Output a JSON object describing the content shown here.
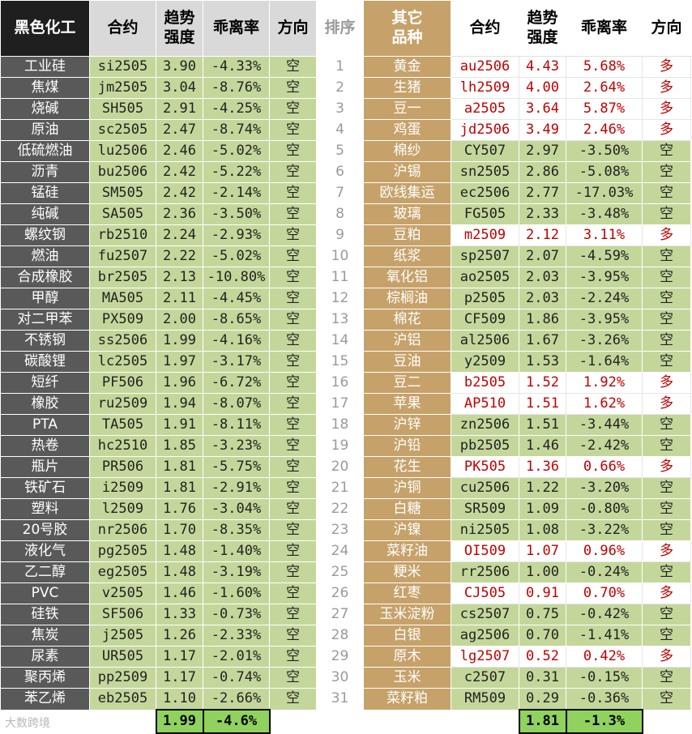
{
  "header": {
    "left_group": "黑色化工",
    "contract": "合约",
    "trend_strength": "趋势\n强度",
    "deviation": "乖离率",
    "direction": "方向",
    "rank": "排序",
    "right_group": "其它\n品种"
  },
  "left_rows": [
    {
      "name": "工业硅",
      "code": "si2505",
      "strength": "3.90",
      "dev": "-4.33%",
      "dir": "空"
    },
    {
      "name": "焦煤",
      "code": "jm2505",
      "strength": "3.04",
      "dev": "-8.76%",
      "dir": "空"
    },
    {
      "name": "烧碱",
      "code": "SH505",
      "strength": "2.91",
      "dev": "-4.25%",
      "dir": "空"
    },
    {
      "name": "原油",
      "code": "sc2505",
      "strength": "2.47",
      "dev": "-8.74%",
      "dir": "空"
    },
    {
      "name": "低硫燃油",
      "code": "lu2506",
      "strength": "2.46",
      "dev": "-5.02%",
      "dir": "空"
    },
    {
      "name": "沥青",
      "code": "bu2506",
      "strength": "2.42",
      "dev": "-5.22%",
      "dir": "空"
    },
    {
      "name": "锰硅",
      "code": "SM505",
      "strength": "2.42",
      "dev": "-2.14%",
      "dir": "空"
    },
    {
      "name": "纯碱",
      "code": "SA505",
      "strength": "2.36",
      "dev": "-3.50%",
      "dir": "空"
    },
    {
      "name": "螺纹钢",
      "code": "rb2510",
      "strength": "2.24",
      "dev": "-2.93%",
      "dir": "空"
    },
    {
      "name": "燃油",
      "code": "fu2507",
      "strength": "2.22",
      "dev": "-5.02%",
      "dir": "空"
    },
    {
      "name": "合成橡胶",
      "code": "br2505",
      "strength": "2.13",
      "dev": "-10.80%",
      "dir": "空"
    },
    {
      "name": "甲醇",
      "code": "MA505",
      "strength": "2.11",
      "dev": "-4.45%",
      "dir": "空"
    },
    {
      "name": "对二甲苯",
      "code": "PX509",
      "strength": "2.00",
      "dev": "-8.65%",
      "dir": "空"
    },
    {
      "name": "不锈钢",
      "code": "ss2506",
      "strength": "1.99",
      "dev": "-4.16%",
      "dir": "空"
    },
    {
      "name": "碳酸锂",
      "code": "lc2505",
      "strength": "1.97",
      "dev": "-3.17%",
      "dir": "空"
    },
    {
      "name": "短纤",
      "code": "PF506",
      "strength": "1.96",
      "dev": "-6.72%",
      "dir": "空"
    },
    {
      "name": "橡胶",
      "code": "ru2509",
      "strength": "1.94",
      "dev": "-8.07%",
      "dir": "空"
    },
    {
      "name": "PTA",
      "code": "TA505",
      "strength": "1.91",
      "dev": "-8.11%",
      "dir": "空"
    },
    {
      "name": "热卷",
      "code": "hc2510",
      "strength": "1.85",
      "dev": "-3.23%",
      "dir": "空"
    },
    {
      "name": "瓶片",
      "code": "PR506",
      "strength": "1.81",
      "dev": "-5.75%",
      "dir": "空"
    },
    {
      "name": "铁矿石",
      "code": "i2509",
      "strength": "1.81",
      "dev": "-2.91%",
      "dir": "空"
    },
    {
      "name": "塑料",
      "code": "l2509",
      "strength": "1.76",
      "dev": "-3.04%",
      "dir": "空"
    },
    {
      "name": "20号胶",
      "code": "nr2506",
      "strength": "1.70",
      "dev": "-8.35%",
      "dir": "空"
    },
    {
      "name": "液化气",
      "code": "pg2505",
      "strength": "1.48",
      "dev": "-1.40%",
      "dir": "空"
    },
    {
      "name": "乙二醇",
      "code": "eg2505",
      "strength": "1.48",
      "dev": "-3.19%",
      "dir": "空"
    },
    {
      "name": "PVC",
      "code": "v2505",
      "strength": "1.46",
      "dev": "-1.60%",
      "dir": "空"
    },
    {
      "name": "硅铁",
      "code": "SF506",
      "strength": "1.33",
      "dev": "-0.73%",
      "dir": "空"
    },
    {
      "name": "焦炭",
      "code": "j2505",
      "strength": "1.26",
      "dev": "-2.33%",
      "dir": "空"
    },
    {
      "name": "尿素",
      "code": "UR505",
      "strength": "1.17",
      "dev": "-2.01%",
      "dir": "空"
    },
    {
      "name": "聚丙烯",
      "code": "pp2509",
      "strength": "1.17",
      "dev": "-0.74%",
      "dir": "空"
    },
    {
      "name": "苯乙烯",
      "code": "eb2505",
      "strength": "1.10",
      "dev": "-2.66%",
      "dir": "空"
    }
  ],
  "ranks": [
    "1",
    "2",
    "3",
    "4",
    "5",
    "6",
    "7",
    "8",
    "9",
    "10",
    "11",
    "12",
    "13",
    "14",
    "15",
    "16",
    "17",
    "18",
    "19",
    "20",
    "21",
    "22",
    "23",
    "24",
    "25",
    "26",
    "27",
    "28",
    "29",
    "30",
    "31"
  ],
  "right_rows": [
    {
      "name": "黄金",
      "code": "au2506",
      "strength": "4.43",
      "dev": "5.68%",
      "dir": "多",
      "long": true
    },
    {
      "name": "生猪",
      "code": "lh2509",
      "strength": "4.00",
      "dev": "2.64%",
      "dir": "多",
      "long": true
    },
    {
      "name": "豆一",
      "code": "a2505",
      "strength": "3.64",
      "dev": "5.87%",
      "dir": "多",
      "long": true
    },
    {
      "name": "鸡蛋",
      "code": "jd2506",
      "strength": "3.49",
      "dev": "2.46%",
      "dir": "多",
      "long": true
    },
    {
      "name": "棉纱",
      "code": "CY507",
      "strength": "2.97",
      "dev": "-3.50%",
      "dir": "空",
      "long": false
    },
    {
      "name": "沪锡",
      "code": "sn2505",
      "strength": "2.86",
      "dev": "-5.08%",
      "dir": "空",
      "long": false
    },
    {
      "name": "欧线集运",
      "code": "ec2506",
      "strength": "2.77",
      "dev": "-17.03%",
      "dir": "空",
      "long": false
    },
    {
      "name": "玻璃",
      "code": "FG505",
      "strength": "2.33",
      "dev": "-3.48%",
      "dir": "空",
      "long": false
    },
    {
      "name": "豆粕",
      "code": "m2509",
      "strength": "2.12",
      "dev": "3.11%",
      "dir": "多",
      "long": true
    },
    {
      "name": "纸浆",
      "code": "sp2507",
      "strength": "2.07",
      "dev": "-4.59%",
      "dir": "空",
      "long": false
    },
    {
      "name": "氧化铝",
      "code": "ao2505",
      "strength": "2.03",
      "dev": "-3.95%",
      "dir": "空",
      "long": false
    },
    {
      "name": "棕榈油",
      "code": "p2505",
      "strength": "2.03",
      "dev": "-2.24%",
      "dir": "空",
      "long": false
    },
    {
      "name": "棉花",
      "code": "CF509",
      "strength": "1.86",
      "dev": "-3.95%",
      "dir": "空",
      "long": false
    },
    {
      "name": "沪铝",
      "code": "al2506",
      "strength": "1.67",
      "dev": "-3.26%",
      "dir": "空",
      "long": false
    },
    {
      "name": "豆油",
      "code": "y2509",
      "strength": "1.53",
      "dev": "-1.64%",
      "dir": "空",
      "long": false
    },
    {
      "name": "豆二",
      "code": "b2505",
      "strength": "1.52",
      "dev": "1.92%",
      "dir": "多",
      "long": true
    },
    {
      "name": "苹果",
      "code": "AP510",
      "strength": "1.51",
      "dev": "1.62%",
      "dir": "多",
      "long": true
    },
    {
      "name": "沪锌",
      "code": "zn2506",
      "strength": "1.51",
      "dev": "-3.44%",
      "dir": "空",
      "long": false
    },
    {
      "name": "沪铅",
      "code": "pb2505",
      "strength": "1.46",
      "dev": "-2.42%",
      "dir": "空",
      "long": false
    },
    {
      "name": "花生",
      "code": "PK505",
      "strength": "1.36",
      "dev": "0.66%",
      "dir": "多",
      "long": true
    },
    {
      "name": "沪铜",
      "code": "cu2506",
      "strength": "1.22",
      "dev": "-3.20%",
      "dir": "空",
      "long": false
    },
    {
      "name": "白糖",
      "code": "SR509",
      "strength": "1.09",
      "dev": "-0.80%",
      "dir": "空",
      "long": false
    },
    {
      "name": "沪镍",
      "code": "ni2505",
      "strength": "1.08",
      "dev": "-3.22%",
      "dir": "空",
      "long": false
    },
    {
      "name": "菜籽油",
      "code": "OI509",
      "strength": "1.07",
      "dev": "0.96%",
      "dir": "多",
      "long": true
    },
    {
      "name": "粳米",
      "code": "rr2506",
      "strength": "1.00",
      "dev": "-0.24%",
      "dir": "空",
      "long": false
    },
    {
      "name": "红枣",
      "code": "CJ505",
      "strength": "0.91",
      "dev": "0.70%",
      "dir": "多",
      "long": true
    },
    {
      "name": "玉米淀粉",
      "code": "cs2507",
      "strength": "0.75",
      "dev": "-0.42%",
      "dir": "空",
      "long": false
    },
    {
      "name": "白银",
      "code": "ag2506",
      "strength": "0.70",
      "dev": "-1.41%",
      "dir": "空",
      "long": false
    },
    {
      "name": "原木",
      "code": "lg2507",
      "strength": "0.52",
      "dev": "0.42%",
      "dir": "多",
      "long": true
    },
    {
      "name": "玉米",
      "code": "c2507",
      "strength": "0.31",
      "dev": "-0.15%",
      "dir": "空",
      "long": false
    },
    {
      "name": "菜籽粕",
      "code": "RM509",
      "strength": "0.29",
      "dev": "-0.36%",
      "dir": "空",
      "long": false
    }
  ],
  "footer": {
    "left_avg_strength": "1.99",
    "left_avg_dev": "-4.6%",
    "right_avg_strength": "1.81",
    "right_avg_dev": "-1.3%",
    "watermark": "大数跨境"
  },
  "colors": {
    "short_fill": "#c4d79b",
    "long_text": "#c00000",
    "left_header": "#1f1f1f",
    "right_header": "#c6a26a",
    "footer_fill": "#8fd25e"
  }
}
